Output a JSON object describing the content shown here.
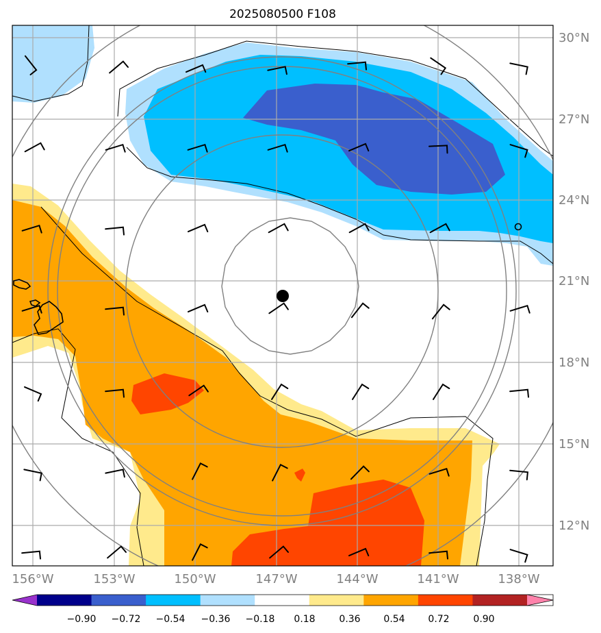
{
  "title": "2025080500 F108",
  "map": {
    "lat_labels": [
      "30°N",
      "27°N",
      "24°N",
      "21°N",
      "18°N",
      "15°N",
      "12°N"
    ],
    "lon_labels": [
      "156°W",
      "153°W",
      "150°W",
      "147°W",
      "144°W",
      "141°W",
      "138°W"
    ],
    "gridlines": true,
    "center_marker": {
      "lat": 20.5,
      "lon": -146.8
    },
    "small_circle_marker": {
      "lat": 23.0,
      "lon": -137.9
    },
    "range_rings": 5
  },
  "colorbar": {
    "labels": [
      "−0.90",
      "−0.72",
      "−0.54",
      "−0.36",
      "−0.18",
      "0.18",
      "0.36",
      "0.54",
      "0.72",
      "0.90"
    ],
    "colors": [
      "#9932cc",
      "#00008b",
      "#3a5fcd",
      "#00bfff",
      "#b0e0fe",
      "#ffffff",
      "#ffea8c",
      "#ffa500",
      "#ff4500",
      "#b22222",
      "#ff82ab"
    ],
    "extend": "both"
  }
}
